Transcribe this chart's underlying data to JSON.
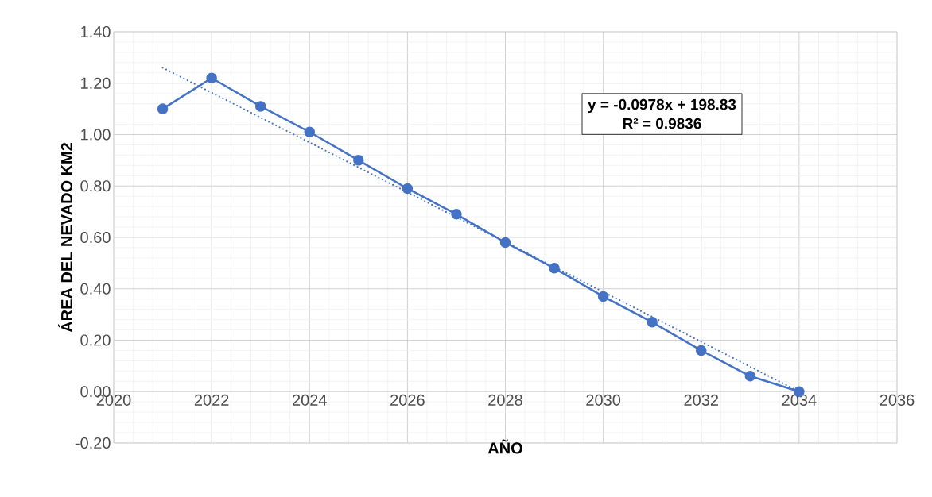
{
  "chart_data": {
    "type": "line",
    "xlabel": "AÑO",
    "ylabel": "ÁREA DEL NEVADO KM2",
    "annotations": [
      "y = -0.0978x + 198.83",
      "R² = 0.9836"
    ],
    "x": [
      2021,
      2022,
      2023,
      2024,
      2025,
      2026,
      2027,
      2028,
      2029,
      2030,
      2031,
      2032,
      2033,
      2034
    ],
    "series": [
      {
        "color": "#4472c4",
        "values": [
          1.1,
          1.22,
          1.11,
          1.01,
          0.9,
          0.79,
          0.69,
          0.58,
          0.48,
          0.37,
          0.27,
          0.16,
          0.06,
          0.0
        ]
      },
      {
        "type": "line",
        "color": "#4472c4",
        "x": [
          2021,
          2034
        ],
        "values": [
          1.26,
          0.0
        ],
        "line_style": "dotted",
        "marker": "none"
      }
    ],
    "xlim": [
      2020,
      2036
    ],
    "xticks": [
      2020,
      2022,
      2024,
      2026,
      2028,
      2030,
      2032,
      2034,
      2036
    ],
    "ylim": [
      -0.2,
      1.4
    ],
    "yticks": [
      {
        "value": -0.2,
        "label": "-0.20"
      },
      {
        "value": 0,
        "label": "0.00"
      },
      {
        "value": 0.2,
        "label": "0.20"
      },
      {
        "value": 0.4,
        "label": "0.40"
      },
      {
        "value": 0.6,
        "label": "0.60"
      },
      {
        "value": 0.8,
        "label": "0.80"
      },
      {
        "value": 1.0,
        "label": "1.00"
      },
      {
        "value": 1.2,
        "label": "1.20"
      },
      {
        "value": 1.4,
        "label": "1.40"
      }
    ],
    "grid": true,
    "marker": "circle",
    "line_style": "solid"
  }
}
